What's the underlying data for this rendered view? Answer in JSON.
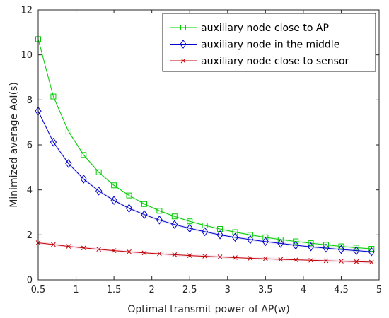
{
  "chart_data": {
    "type": "line",
    "xlabel": "Optimal transmit power of AP(w)",
    "ylabel": "Minimized average AoI(s)",
    "xlim": [
      0.5,
      5
    ],
    "ylim": [
      0,
      12
    ],
    "xticks": [
      0.5,
      1,
      1.5,
      2,
      2.5,
      3,
      3.5,
      4,
      4.5,
      5
    ],
    "xtick_labels": [
      "0.5",
      "1",
      "1.5",
      "2",
      "2.5",
      "3",
      "3.5",
      "4",
      "4.5",
      "5"
    ],
    "yticks": [
      0,
      2,
      4,
      6,
      8,
      10,
      12
    ],
    "ytick_labels": [
      "0",
      "2",
      "4",
      "6",
      "8",
      "10",
      "12"
    ],
    "grid": false,
    "legend_position": "top-right",
    "x": [
      0.5,
      0.7,
      0.9,
      1.1,
      1.3,
      1.5,
      1.7,
      1.9,
      2.1,
      2.3,
      2.5,
      2.7,
      2.9,
      3.1,
      3.3,
      3.5,
      3.7,
      3.9,
      4.1,
      4.3,
      4.5,
      4.7,
      4.9
    ],
    "series": [
      {
        "name": "auxiliary node close to AP",
        "marker": "square",
        "color": "#00cc00",
        "values": [
          10.7,
          8.15,
          6.6,
          5.55,
          4.78,
          4.2,
          3.75,
          3.37,
          3.07,
          2.82,
          2.6,
          2.42,
          2.26,
          2.12,
          2.0,
          1.89,
          1.79,
          1.71,
          1.63,
          1.56,
          1.49,
          1.43,
          1.38
        ]
      },
      {
        "name": "auxiliary node in the middle",
        "marker": "diamond",
        "color": "#0000cc",
        "values": [
          7.5,
          6.12,
          5.17,
          4.48,
          3.95,
          3.53,
          3.18,
          2.9,
          2.66,
          2.46,
          2.29,
          2.14,
          2.0,
          1.89,
          1.79,
          1.7,
          1.62,
          1.54,
          1.47,
          1.41,
          1.35,
          1.3,
          1.25
        ]
      },
      {
        "name": "auxiliary node close to sensor",
        "marker": "x",
        "color": "#c00000",
        "values": [
          1.65,
          1.57,
          1.49,
          1.42,
          1.36,
          1.3,
          1.25,
          1.2,
          1.16,
          1.12,
          1.08,
          1.05,
          1.02,
          0.99,
          0.96,
          0.94,
          0.91,
          0.89,
          0.87,
          0.85,
          0.83,
          0.81,
          0.79
        ]
      }
    ]
  }
}
